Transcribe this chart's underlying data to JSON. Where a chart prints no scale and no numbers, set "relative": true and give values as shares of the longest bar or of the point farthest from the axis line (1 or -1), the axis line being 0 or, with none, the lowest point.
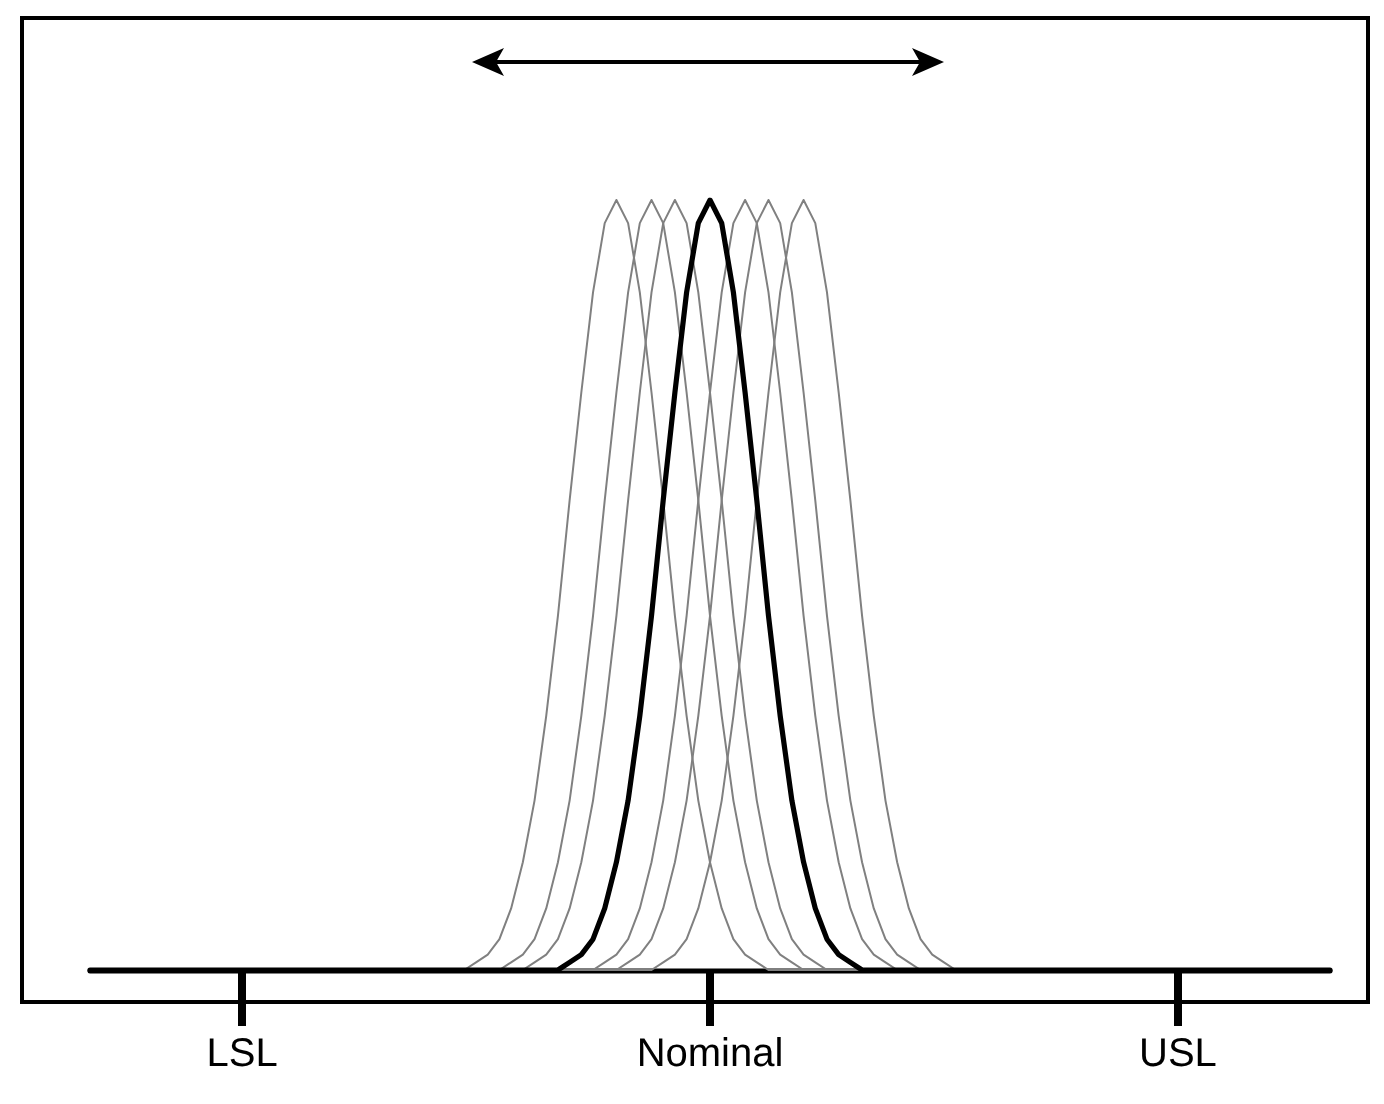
{
  "chart_data": {
    "type": "line",
    "relative": true,
    "marker": "none",
    "line_style": "solid",
    "categories": [
      null,
      null,
      null,
      null,
      null,
      null,
      null,
      null,
      null,
      null,
      null,
      null,
      null,
      "LSL",
      null,
      null,
      null,
      null,
      null,
      null,
      null,
      null,
      null,
      null,
      null,
      null,
      null,
      null,
      null,
      null,
      null,
      null,
      null,
      null,
      null,
      null,
      null,
      null,
      null,
      null,
      null,
      null,
      null,
      null,
      null,
      null,
      null,
      null,
      null,
      null,
      null,
      null,
      null,
      "Nominal",
      null,
      null,
      null,
      null,
      null,
      null,
      null,
      null,
      null,
      null,
      null,
      null,
      null,
      null,
      null,
      null,
      null,
      null,
      null,
      null,
      null,
      null,
      null,
      null,
      null,
      null,
      null,
      null,
      null,
      null,
      null,
      null,
      null,
      null,
      null,
      null,
      null,
      null,
      null,
      "USL",
      null,
      null,
      null,
      null,
      null,
      null,
      null,
      null,
      null,
      null,
      null,
      null,
      null
    ],
    "series": [
      {
        "color": "#808080",
        "values": [
          0,
          0,
          0,
          0,
          0,
          0,
          0,
          0,
          0,
          0,
          0,
          0,
          0,
          0,
          0,
          0,
          0,
          0,
          0,
          0,
          0,
          0,
          0,
          0,
          0,
          0,
          0,
          0,
          0,
          0,
          0,
          0,
          0,
          0.01,
          0.02,
          0.04,
          0.08,
          0.14,
          0.22,
          0.33,
          0.46,
          0.61,
          0.75,
          0.88,
          0.97,
          1,
          0.97,
          0.88,
          0.75,
          0.61,
          0.46,
          0.33,
          0.22,
          0.14,
          0.08,
          0.04,
          0.02,
          0.01,
          0,
          0,
          0,
          0,
          0,
          0,
          0,
          0,
          0,
          0,
          0,
          0,
          0,
          0,
          0,
          0,
          0,
          0,
          0,
          0,
          0,
          0,
          0,
          0,
          0,
          0,
          0,
          0,
          0,
          0,
          0,
          0,
          0,
          0,
          0,
          0,
          0,
          0,
          0,
          0,
          0,
          0,
          0,
          0,
          0,
          0,
          0,
          0,
          0
        ]
      },
      {
        "color": "#808080",
        "values": [
          0,
          0,
          0,
          0,
          0,
          0,
          0,
          0,
          0,
          0,
          0,
          0,
          0,
          0,
          0,
          0,
          0,
          0,
          0,
          0,
          0,
          0,
          0,
          0,
          0,
          0,
          0,
          0,
          0,
          0,
          0,
          0,
          0,
          0,
          0,
          0,
          0.01,
          0.02,
          0.04,
          0.08,
          0.14,
          0.22,
          0.33,
          0.46,
          0.61,
          0.75,
          0.88,
          0.97,
          1,
          0.97,
          0.88,
          0.75,
          0.61,
          0.46,
          0.33,
          0.22,
          0.14,
          0.08,
          0.04,
          0.02,
          0.01,
          0,
          0,
          0,
          0,
          0,
          0,
          0,
          0,
          0,
          0,
          0,
          0,
          0,
          0,
          0,
          0,
          0,
          0,
          0,
          0,
          0,
          0,
          0,
          0,
          0,
          0,
          0,
          0,
          0,
          0,
          0,
          0,
          0,
          0,
          0,
          0,
          0,
          0,
          0,
          0,
          0,
          0,
          0,
          0,
          0,
          0
        ]
      },
      {
        "color": "#808080",
        "values": [
          0,
          0,
          0,
          0,
          0,
          0,
          0,
          0,
          0,
          0,
          0,
          0,
          0,
          0,
          0,
          0,
          0,
          0,
          0,
          0,
          0,
          0,
          0,
          0,
          0,
          0,
          0,
          0,
          0,
          0,
          0,
          0,
          0,
          0,
          0,
          0,
          0,
          0,
          0.01,
          0.02,
          0.04,
          0.08,
          0.14,
          0.22,
          0.33,
          0.46,
          0.61,
          0.75,
          0.88,
          0.97,
          1,
          0.97,
          0.88,
          0.75,
          0.61,
          0.46,
          0.33,
          0.22,
          0.14,
          0.08,
          0.04,
          0.02,
          0.01,
          0,
          0,
          0,
          0,
          0,
          0,
          0,
          0,
          0,
          0,
          0,
          0,
          0,
          0,
          0,
          0,
          0,
          0,
          0,
          0,
          0,
          0,
          0,
          0,
          0,
          0,
          0,
          0,
          0,
          0,
          0,
          0,
          0,
          0,
          0,
          0,
          0,
          0,
          0,
          0,
          0,
          0,
          0,
          0
        ]
      },
      {
        "color": "#000000",
        "values": [
          0,
          0,
          0,
          0,
          0,
          0,
          0,
          0,
          0,
          0,
          0,
          0,
          0,
          0,
          0,
          0,
          0,
          0,
          0,
          0,
          0,
          0,
          0,
          0,
          0,
          0,
          0,
          0,
          0,
          0,
          0,
          0,
          0,
          0,
          0,
          0,
          0,
          0,
          0,
          0,
          0,
          0.01,
          0.02,
          0.04,
          0.08,
          0.14,
          0.22,
          0.33,
          0.46,
          0.61,
          0.75,
          0.88,
          0.97,
          1,
          0.97,
          0.88,
          0.75,
          0.61,
          0.46,
          0.33,
          0.22,
          0.14,
          0.08,
          0.04,
          0.02,
          0.01,
          0,
          0,
          0,
          0,
          0,
          0,
          0,
          0,
          0,
          0,
          0,
          0,
          0,
          0,
          0,
          0,
          0,
          0,
          0,
          0,
          0,
          0,
          0,
          0,
          0,
          0,
          0,
          0,
          0,
          0,
          0,
          0,
          0,
          0,
          0,
          0,
          0,
          0,
          0,
          0,
          0
        ]
      },
      {
        "color": "#808080",
        "values": [
          0,
          0,
          0,
          0,
          0,
          0,
          0,
          0,
          0,
          0,
          0,
          0,
          0,
          0,
          0,
          0,
          0,
          0,
          0,
          0,
          0,
          0,
          0,
          0,
          0,
          0,
          0,
          0,
          0,
          0,
          0,
          0,
          0,
          0,
          0,
          0,
          0,
          0,
          0,
          0,
          0,
          0,
          0,
          0,
          0.01,
          0.02,
          0.04,
          0.08,
          0.14,
          0.22,
          0.33,
          0.46,
          0.61,
          0.75,
          0.88,
          0.97,
          1,
          0.97,
          0.88,
          0.75,
          0.61,
          0.46,
          0.33,
          0.22,
          0.14,
          0.08,
          0.04,
          0.02,
          0.01,
          0,
          0,
          0,
          0,
          0,
          0,
          0,
          0,
          0,
          0,
          0,
          0,
          0,
          0,
          0,
          0,
          0,
          0,
          0,
          0,
          0,
          0,
          0,
          0,
          0,
          0,
          0,
          0,
          0,
          0,
          0,
          0,
          0,
          0,
          0,
          0,
          0,
          0
        ]
      },
      {
        "color": "#808080",
        "values": [
          0,
          0,
          0,
          0,
          0,
          0,
          0,
          0,
          0,
          0,
          0,
          0,
          0,
          0,
          0,
          0,
          0,
          0,
          0,
          0,
          0,
          0,
          0,
          0,
          0,
          0,
          0,
          0,
          0,
          0,
          0,
          0,
          0,
          0,
          0,
          0,
          0,
          0,
          0,
          0,
          0,
          0,
          0,
          0,
          0,
          0,
          0.01,
          0.02,
          0.04,
          0.08,
          0.14,
          0.22,
          0.33,
          0.46,
          0.61,
          0.75,
          0.88,
          0.97,
          1,
          0.97,
          0.88,
          0.75,
          0.61,
          0.46,
          0.33,
          0.22,
          0.14,
          0.08,
          0.04,
          0.02,
          0.01,
          0,
          0,
          0,
          0,
          0,
          0,
          0,
          0,
          0,
          0,
          0,
          0,
          0,
          0,
          0,
          0,
          0,
          0,
          0,
          0,
          0,
          0,
          0,
          0,
          0,
          0,
          0,
          0,
          0,
          0,
          0,
          0,
          0,
          0,
          0,
          0
        ]
      },
      {
        "color": "#808080",
        "values": [
          0,
          0,
          0,
          0,
          0,
          0,
          0,
          0,
          0,
          0,
          0,
          0,
          0,
          0,
          0,
          0,
          0,
          0,
          0,
          0,
          0,
          0,
          0,
          0,
          0,
          0,
          0,
          0,
          0,
          0,
          0,
          0,
          0,
          0,
          0,
          0,
          0,
          0,
          0,
          0,
          0,
          0,
          0,
          0,
          0,
          0,
          0,
          0,
          0,
          0.01,
          0.02,
          0.04,
          0.08,
          0.14,
          0.22,
          0.33,
          0.46,
          0.61,
          0.75,
          0.88,
          0.97,
          1,
          0.97,
          0.88,
          0.75,
          0.61,
          0.46,
          0.33,
          0.22,
          0.14,
          0.08,
          0.04,
          0.02,
          0.01,
          0,
          0,
          0,
          0,
          0,
          0,
          0,
          0,
          0,
          0,
          0,
          0,
          0,
          0,
          0,
          0,
          0,
          0,
          0,
          0,
          0,
          0,
          0,
          0,
          0,
          0,
          0,
          0,
          0,
          0,
          0,
          0,
          0
        ]
      }
    ]
  }
}
